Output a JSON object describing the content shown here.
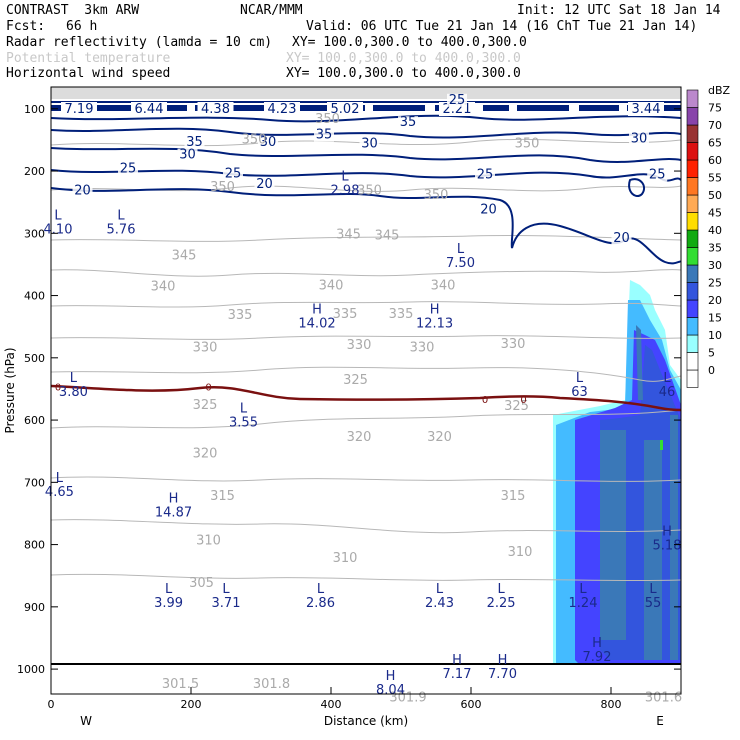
{
  "header": {
    "model": "CONTRAST  3km ARW",
    "org": "NCAR/MMM",
    "init": "Init: 12 UTC Sat 18 Jan 14",
    "fcst_label": "Fcst:",
    "fcst_value": "66 h",
    "valid": "Valid: 06 UTC Tue 21 Jan 14 (16 ChT Tue 21 Jan 14)"
  },
  "fields": [
    {
      "name": "Radar reflectivity (lamda = 10 cm)",
      "xy": "XY= 100.0,300.0 to 400.0,300.0",
      "color": "#000000"
    },
    {
      "name": "Potential temperature",
      "xy": "XY= 100.0,300.0 to 400.0,300.0",
      "color": "#c8c8c8"
    },
    {
      "name": "Horizontal wind speed",
      "xy": "XY= 100.0,300.0 to 400.0,300.0",
      "color": "#000000"
    }
  ],
  "chart_data": {
    "type": "cross-section",
    "xlabel": "Distance (km)",
    "ylabel": "Pressure (hPa)",
    "xlim": [
      0,
      900
    ],
    "ylim": [
      1040,
      65
    ],
    "xticks": [
      0,
      200,
      400,
      600,
      800
    ],
    "yticks": [
      100,
      200,
      300,
      400,
      500,
      600,
      700,
      800,
      900,
      1000
    ],
    "west_label": "W",
    "east_label": "E",
    "colorbar": {
      "unit": "dBZ",
      "levels": [
        0,
        5,
        10,
        15,
        20,
        25,
        30,
        35,
        40,
        45,
        50,
        55,
        60,
        65,
        70,
        75
      ],
      "colors": [
        "#ffffff",
        "#ffffff",
        "#99ffff",
        "#44bbff",
        "#4444ff",
        "#3355dd",
        "#3a78b8",
        "#33dd33",
        "#11aa11",
        "#ffdd00",
        "#ffaa55",
        "#ff7722",
        "#ff2200",
        "#dd1111",
        "#993333",
        "#8844aa",
        "#bb88cc"
      ]
    },
    "wind_speed_contours": [
      20,
      25,
      30,
      35
    ],
    "theta_contours": [
      301.5,
      305,
      310,
      315,
      320,
      325,
      330,
      335,
      340,
      345,
      350
    ],
    "freezing_level_label": "0",
    "top_values": [
      {
        "x": 40,
        "value": "7.19"
      },
      {
        "x": 140,
        "value": "6.44"
      },
      {
        "x": 235,
        "value": "4.38"
      },
      {
        "x": 330,
        "value": "4.23"
      },
      {
        "x": 420,
        "value": "5.02"
      },
      {
        "x": 580,
        "value": "2.21"
      },
      {
        "x": 850,
        "value": "3.44"
      }
    ],
    "wind_labels": [
      {
        "x": 580,
        "p": 92,
        "text": "25"
      },
      {
        "x": 510,
        "p": 128,
        "text": "35"
      },
      {
        "x": 390,
        "p": 148,
        "text": "35"
      },
      {
        "x": 310,
        "p": 160,
        "text": "30"
      },
      {
        "x": 455,
        "p": 162,
        "text": "30"
      },
      {
        "x": 840,
        "p": 154,
        "text": "30"
      },
      {
        "x": 205,
        "p": 160,
        "text": "35"
      },
      {
        "x": 195,
        "p": 180,
        "text": "30"
      },
      {
        "x": 260,
        "p": 210,
        "text": "25"
      },
      {
        "x": 110,
        "p": 202,
        "text": "25"
      },
      {
        "x": 620,
        "p": 212,
        "text": "25"
      },
      {
        "x": 866,
        "p": 212,
        "text": "25"
      },
      {
        "x": 305,
        "p": 227,
        "text": "20"
      },
      {
        "x": 45,
        "p": 238,
        "text": "20"
      },
      {
        "x": 625,
        "p": 268,
        "text": "20"
      },
      {
        "x": 815,
        "p": 314,
        "text": "20"
      }
    ],
    "theta_labels": [
      {
        "x": 395,
        "p": 123,
        "text": "350"
      },
      {
        "x": 290,
        "p": 156,
        "text": "350"
      },
      {
        "x": 245,
        "p": 232,
        "text": "350"
      },
      {
        "x": 455,
        "p": 238,
        "text": "350"
      },
      {
        "x": 550,
        "p": 245,
        "text": "350"
      },
      {
        "x": 680,
        "p": 162,
        "text": "350"
      },
      {
        "x": 425,
        "p": 308,
        "text": "345"
      },
      {
        "x": 480,
        "p": 310,
        "text": "345"
      },
      {
        "x": 190,
        "p": 342,
        "text": "345"
      },
      {
        "x": 160,
        "p": 392,
        "text": "340"
      },
      {
        "x": 400,
        "p": 390,
        "text": "340"
      },
      {
        "x": 560,
        "p": 390,
        "text": "340"
      },
      {
        "x": 270,
        "p": 438,
        "text": "335"
      },
      {
        "x": 420,
        "p": 436,
        "text": "335"
      },
      {
        "x": 500,
        "p": 436,
        "text": "335"
      },
      {
        "x": 220,
        "p": 490,
        "text": "330"
      },
      {
        "x": 440,
        "p": 486,
        "text": "330"
      },
      {
        "x": 530,
        "p": 490,
        "text": "330"
      },
      {
        "x": 660,
        "p": 484,
        "text": "330"
      },
      {
        "x": 435,
        "p": 542,
        "text": "325"
      },
      {
        "x": 665,
        "p": 584,
        "text": "325"
      },
      {
        "x": 220,
        "p": 582,
        "text": "325"
      },
      {
        "x": 440,
        "p": 634,
        "text": "320"
      },
      {
        "x": 555,
        "p": 634,
        "text": "320"
      },
      {
        "x": 220,
        "p": 660,
        "text": "320"
      },
      {
        "x": 245,
        "p": 728,
        "text": "315"
      },
      {
        "x": 660,
        "p": 728,
        "text": "315"
      },
      {
        "x": 225,
        "p": 800,
        "text": "310"
      },
      {
        "x": 420,
        "p": 828,
        "text": "310"
      },
      {
        "x": 670,
        "p": 818,
        "text": "310"
      },
      {
        "x": 215,
        "p": 868,
        "text": "305"
      },
      {
        "x": 185,
        "p": 1030,
        "text": "301.5"
      },
      {
        "x": 315,
        "p": 1030,
        "text": "301.8"
      },
      {
        "x": 510,
        "p": 1052,
        "text": "301.9"
      },
      {
        "x": 875,
        "p": 1052,
        "text": "301.6"
      }
    ],
    "extrema": [
      {
        "x": 10,
        "p": 300,
        "type": "L",
        "value": "4.10"
      },
      {
        "x": 100,
        "p": 300,
        "type": "L",
        "value": "5.76"
      },
      {
        "x": 420,
        "p": 238,
        "type": "L",
        "value": "2.98"
      },
      {
        "x": 585,
        "p": 354,
        "type": "L",
        "value": "7.50"
      },
      {
        "x": 380,
        "p": 451,
        "type": "H",
        "value": "14.02"
      },
      {
        "x": 548,
        "p": 451,
        "type": "H",
        "value": "12.13"
      },
      {
        "x": 32,
        "p": 561,
        "type": "L",
        "value": "3.80"
      },
      {
        "x": 275,
        "p": 610,
        "type": "L",
        "value": "3.55"
      },
      {
        "x": 755,
        "p": 561,
        "type": "L",
        "value": "63"
      },
      {
        "x": 880,
        "p": 561,
        "type": "L",
        "value": "46"
      },
      {
        "x": 12,
        "p": 722,
        "type": "L",
        "value": "4.65"
      },
      {
        "x": 175,
        "p": 755,
        "type": "H",
        "value": "14.87"
      },
      {
        "x": 880,
        "p": 808,
        "type": "H",
        "value": "5.18"
      },
      {
        "x": 168,
        "p": 900,
        "type": "L",
        "value": "3.99"
      },
      {
        "x": 250,
        "p": 900,
        "type": "L",
        "value": "3.71"
      },
      {
        "x": 385,
        "p": 900,
        "type": "L",
        "value": "2.86"
      },
      {
        "x": 555,
        "p": 900,
        "type": "L",
        "value": "2.43"
      },
      {
        "x": 643,
        "p": 900,
        "type": "L",
        "value": "2.25"
      },
      {
        "x": 760,
        "p": 900,
        "type": "L",
        "value": "1.24"
      },
      {
        "x": 860,
        "p": 900,
        "type": "L",
        "value": "55"
      },
      {
        "x": 580,
        "p": 1014,
        "type": "H",
        "value": "7.17"
      },
      {
        "x": 645,
        "p": 1014,
        "type": "H",
        "value": "7.70"
      },
      {
        "x": 780,
        "p": 987,
        "type": "H",
        "value": "7.92"
      },
      {
        "x": 485,
        "p": 1040,
        "type": "H",
        "value": "8.04"
      }
    ]
  }
}
